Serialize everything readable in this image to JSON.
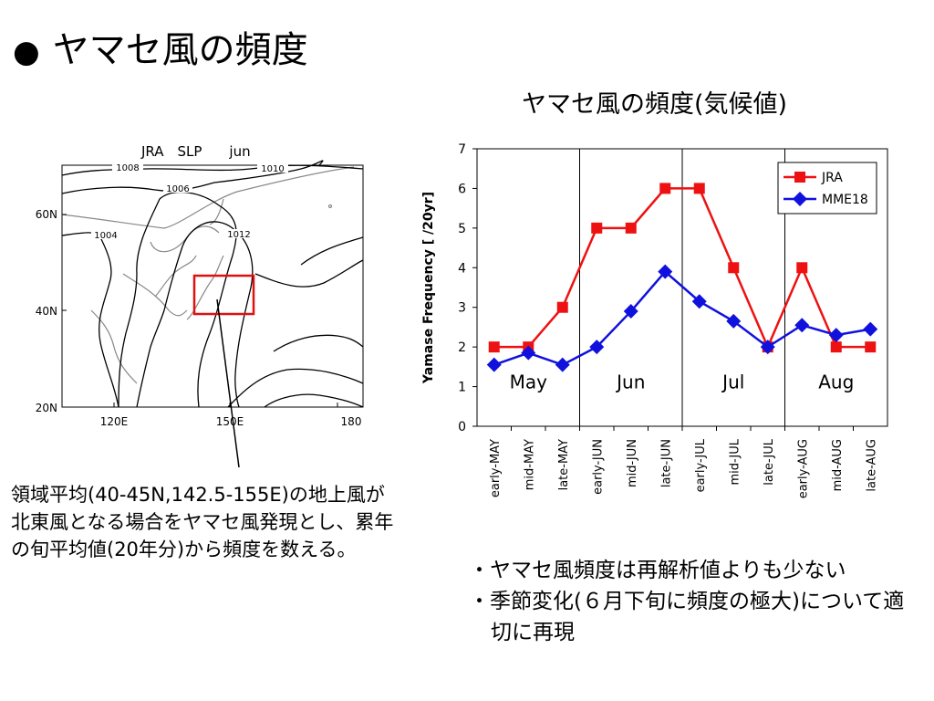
{
  "slide": {
    "bullet": "●",
    "title": "ヤマセ風の頻度"
  },
  "map": {
    "header": "JRA　SLP　　jun",
    "lat_labels": [
      "60N",
      "40N",
      "20N"
    ],
    "lon_labels": [
      "120E",
      "150E",
      "180"
    ],
    "contour_labels": [
      "1008",
      "1006",
      "1004",
      "1012",
      "1010"
    ]
  },
  "caption": {
    "lines": [
      "領域平均(40-45N,142.5-155E)の地上風が",
      "北東風となる場合をヤマセ風発現とし、累年",
      "の旬平均値(20年分)から頻度を数える。"
    ]
  },
  "notes": [
    "・ヤマセ風頻度は再解析値よりも少ない",
    "・季節変化(６月下旬に頻度の極大)について適切に再現"
  ],
  "chart_data": {
    "type": "line",
    "title": "ヤマセ風の頻度(気候値)",
    "ylabel": "Yamase Frequency [ /20yr]",
    "xlabel": "",
    "ylim": [
      0,
      7
    ],
    "yticks": [
      0,
      1,
      2,
      3,
      4,
      5,
      6,
      7
    ],
    "categories": [
      "early-MAY",
      "mid-MAY",
      "late-MAY",
      "early-JUN",
      "mid-JUN",
      "late-JUN",
      "early-JUL",
      "mid-JUL",
      "late-JUL",
      "early-AUG",
      "mid-AUG",
      "late-AUG"
    ],
    "month_labels": [
      "May",
      "Jun",
      "Jul",
      "Aug"
    ],
    "grid": false,
    "legend_position": "top-right",
    "series": [
      {
        "name": "JRA",
        "color": "#ee1111",
        "marker": "square",
        "values": [
          2,
          2,
          3,
          5,
          5,
          6,
          6,
          4,
          2,
          4,
          2,
          2
        ]
      },
      {
        "name": "MME18",
        "color": "#1111dd",
        "marker": "diamond",
        "values": [
          1.55,
          1.85,
          1.55,
          2.0,
          2.9,
          3.9,
          3.15,
          2.65,
          2.0,
          2.55,
          2.3,
          2.45
        ]
      }
    ]
  }
}
